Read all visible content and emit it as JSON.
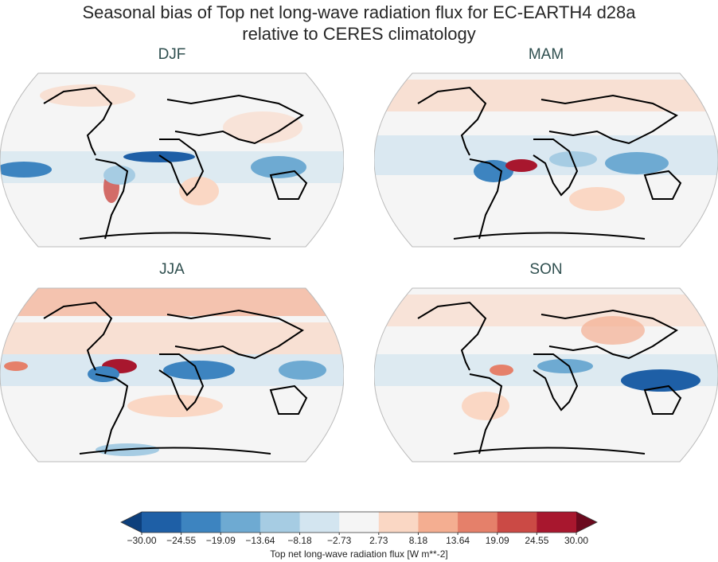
{
  "figure": {
    "title_line1": "Seasonal bias of Top net long-wave radiation flux for EC-EARTH4 d28a",
    "title_line2": "relative to CERES climatology"
  },
  "panels": [
    {
      "id": "djf",
      "label": "DJF"
    },
    {
      "id": "mam",
      "label": "MAM"
    },
    {
      "id": "jja",
      "label": "JJA"
    },
    {
      "id": "son",
      "label": "SON"
    }
  ],
  "colorbar": {
    "label": "Top net long-wave radiation flux [W m**-2]",
    "ticks": [
      "−30.00",
      "−24.55",
      "−19.09",
      "−13.64",
      "−8.18",
      "−2.73",
      "2.73",
      "8.18",
      "13.64",
      "19.09",
      "24.55",
      "30.00"
    ],
    "colors": [
      "#1e5fa6",
      "#3d84c0",
      "#6eaad2",
      "#a6cce3",
      "#d3e5f0",
      "#f5f5f5",
      "#fad7c4",
      "#f4ae91",
      "#e5806a",
      "#cb4a45",
      "#a8172e"
    ],
    "extend_min_color": "#0d3f7c",
    "extend_max_color": "#6b0a1e"
  }
}
